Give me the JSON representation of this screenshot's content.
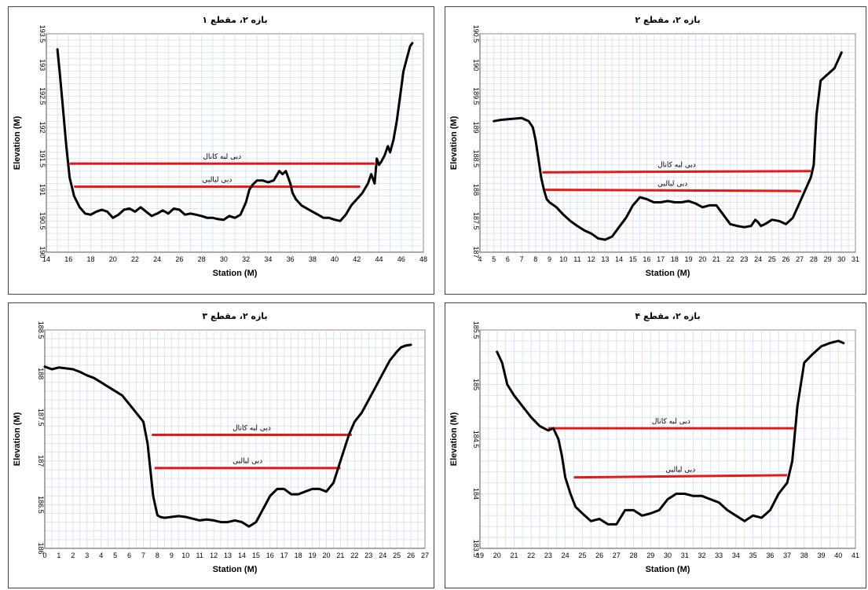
{
  "colors": {
    "profile": "#000000",
    "discharge_lines": "#e11a1a",
    "grid": "#d9e3ef",
    "plot_bg": "#ffffff"
  },
  "chart_data": [
    {
      "type": "line",
      "title": "بازه ۲، مقطع ۱",
      "xlabel": "Station (M)",
      "ylabel": "Elevation (M)",
      "xlim": [
        14,
        48
      ],
      "ylim": [
        190,
        193.5
      ],
      "xticks": [
        14,
        16,
        18,
        20,
        22,
        24,
        26,
        28,
        30,
        32,
        34,
        36,
        38,
        40,
        42,
        44,
        46,
        48
      ],
      "yticks": [
        190,
        190.5,
        191,
        191.5,
        192,
        192.5,
        193,
        193.5
      ],
      "grid": true,
      "series": [
        {
          "x": [
            15.0,
            15.2,
            15.5,
            15.8,
            16.1,
            16.5,
            17.0,
            17.5,
            18.0,
            18.5,
            19.0,
            19.5,
            20.0,
            20.5,
            21.0,
            21.5,
            22.0,
            22.5,
            23.0,
            23.5,
            24.0,
            24.5,
            25.0,
            25.5,
            26.0,
            26.5,
            27.0,
            27.5,
            28.0,
            28.5,
            29.0,
            29.5,
            30.0,
            30.5,
            31.0,
            31.5,
            32.0,
            32.3,
            32.6,
            33.0,
            33.5,
            34.0,
            34.5,
            35.0,
            35.3,
            35.6,
            35.8,
            36.0,
            36.2,
            36.5,
            37.0,
            37.5,
            38.0,
            38.5,
            39.0,
            39.5,
            40.0,
            40.5,
            41.0,
            41.5,
            42.0,
            42.5,
            43.0,
            43.3,
            43.6,
            43.8,
            44.0,
            44.2,
            44.5,
            44.8,
            45.0,
            45.3,
            45.6,
            45.9,
            46.2,
            46.5,
            46.8,
            47.0
          ],
          "y": [
            193.25,
            192.9,
            192.3,
            191.7,
            191.2,
            190.9,
            190.72,
            190.62,
            190.6,
            190.65,
            190.68,
            190.65,
            190.55,
            190.6,
            190.68,
            190.7,
            190.65,
            190.72,
            190.65,
            190.58,
            190.62,
            190.67,
            190.62,
            190.7,
            190.68,
            190.6,
            190.62,
            190.6,
            190.58,
            190.55,
            190.55,
            190.53,
            190.52,
            190.58,
            190.55,
            190.6,
            190.8,
            191.0,
            191.08,
            191.15,
            191.15,
            191.12,
            191.15,
            191.3,
            191.25,
            191.3,
            191.2,
            191.1,
            190.95,
            190.85,
            190.75,
            190.7,
            190.65,
            190.6,
            190.55,
            190.55,
            190.52,
            190.5,
            190.6,
            190.75,
            190.85,
            190.95,
            191.1,
            191.25,
            191.1,
            191.5,
            191.4,
            191.45,
            191.55,
            191.7,
            191.6,
            191.8,
            192.1,
            192.5,
            192.9,
            193.1,
            193.3,
            193.35
          ]
        }
      ],
      "hlines": [
        {
          "label": "دبی لبه کانال",
          "x0": 16.1,
          "x1": 43.6,
          "y0": 191.42,
          "y1": 191.42
        },
        {
          "label": "دبی لبالبی",
          "x0": 16.5,
          "x1": 42.3,
          "y0": 191.05,
          "y1": 191.05
        }
      ]
    },
    {
      "type": "line",
      "title": "بازه ۲، مقطع ۲",
      "xlabel": "Station (M)",
      "ylabel": "Elevation (M)",
      "xlim": [
        4,
        31
      ],
      "ylim": [
        187,
        190.5
      ],
      "xticks": [
        4,
        5,
        6,
        7,
        8,
        9,
        10,
        11,
        12,
        13,
        14,
        15,
        16,
        17,
        18,
        19,
        20,
        21,
        22,
        23,
        24,
        25,
        26,
        27,
        28,
        29,
        30,
        31
      ],
      "yticks": [
        187,
        187.5,
        188,
        188.5,
        189,
        189.5,
        190,
        190.5
      ],
      "grid": true,
      "series": [
        {
          "x": [
            5.0,
            5.5,
            6.0,
            6.5,
            7.0,
            7.5,
            7.8,
            8.0,
            8.2,
            8.4,
            8.6,
            8.8,
            9.0,
            9.5,
            10.0,
            10.5,
            11.0,
            11.5,
            12.0,
            12.5,
            13.0,
            13.5,
            14.0,
            14.5,
            15.0,
            15.5,
            16.0,
            16.5,
            17.0,
            17.5,
            18.0,
            18.5,
            19.0,
            19.5,
            20.0,
            20.5,
            21.0,
            21.5,
            22.0,
            22.5,
            23.0,
            23.5,
            23.8,
            24.0,
            24.2,
            24.5,
            25.0,
            25.5,
            26.0,
            26.5,
            27.0,
            27.3,
            27.6,
            27.8,
            28.0,
            28.2,
            28.5,
            29.0,
            29.5,
            30.0
          ],
          "y": [
            189.1,
            189.12,
            189.13,
            189.14,
            189.15,
            189.1,
            189.0,
            188.8,
            188.5,
            188.2,
            188.0,
            187.85,
            187.8,
            187.72,
            187.6,
            187.5,
            187.42,
            187.35,
            187.3,
            187.22,
            187.2,
            187.25,
            187.4,
            187.55,
            187.75,
            187.88,
            187.85,
            187.8,
            187.8,
            187.82,
            187.8,
            187.8,
            187.82,
            187.78,
            187.72,
            187.75,
            187.75,
            187.6,
            187.45,
            187.42,
            187.4,
            187.42,
            187.52,
            187.48,
            187.42,
            187.45,
            187.52,
            187.5,
            187.45,
            187.55,
            187.8,
            187.95,
            188.1,
            188.2,
            188.4,
            189.2,
            189.75,
            189.85,
            189.95,
            190.2
          ]
        }
      ],
      "hlines": [
        {
          "label": "دبی لبه کانال",
          "x0": 8.5,
          "x1": 27.8,
          "y0": 188.28,
          "y1": 188.3
        },
        {
          "label": "دبی لبالبی",
          "x0": 8.6,
          "x1": 27.1,
          "y0": 188.0,
          "y1": 187.98
        }
      ]
    },
    {
      "type": "line",
      "title": "بازه ۲، مقطع ۳",
      "xlabel": "Station (M)",
      "ylabel": "Elevation (M)",
      "xlim": [
        0,
        27
      ],
      "ylim": [
        186,
        188.5
      ],
      "xticks": [
        0,
        1,
        2,
        3,
        4,
        5,
        6,
        7,
        8,
        9,
        10,
        11,
        12,
        13,
        14,
        15,
        16,
        17,
        18,
        19,
        20,
        21,
        22,
        23,
        24,
        25,
        26,
        27
      ],
      "yticks": [
        186,
        186.5,
        187,
        187.5,
        188,
        188.5
      ],
      "grid": true,
      "series": [
        {
          "x": [
            0.0,
            0.5,
            1.0,
            1.5,
            2.0,
            2.5,
            3.0,
            3.5,
            4.0,
            4.5,
            5.0,
            5.5,
            6.0,
            6.5,
            7.0,
            7.3,
            7.5,
            7.7,
            7.9,
            8.0,
            8.2,
            8.5,
            9.0,
            9.5,
            10.0,
            10.5,
            11.0,
            11.5,
            12.0,
            12.5,
            13.0,
            13.5,
            14.0,
            14.5,
            15.0,
            15.5,
            16.0,
            16.5,
            17.0,
            17.5,
            18.0,
            18.5,
            19.0,
            19.5,
            20.0,
            20.5,
            21.0,
            21.3,
            21.6,
            22.0,
            22.5,
            23.0,
            23.5,
            24.0,
            24.5,
            25.0,
            25.3,
            25.6,
            26.0
          ],
          "y": [
            188.08,
            188.05,
            188.07,
            188.06,
            188.05,
            188.02,
            187.98,
            187.95,
            187.9,
            187.85,
            187.8,
            187.75,
            187.65,
            187.55,
            187.45,
            187.2,
            186.9,
            186.6,
            186.45,
            186.38,
            186.36,
            186.35,
            186.36,
            186.37,
            186.36,
            186.34,
            186.32,
            186.33,
            186.32,
            186.3,
            186.3,
            186.32,
            186.3,
            186.25,
            186.3,
            186.45,
            186.6,
            186.68,
            186.68,
            186.62,
            186.62,
            186.65,
            186.68,
            186.68,
            186.65,
            186.75,
            187.0,
            187.15,
            187.3,
            187.45,
            187.55,
            187.7,
            187.85,
            188.0,
            188.15,
            188.25,
            188.3,
            188.32,
            188.33
          ]
        }
      ],
      "hlines": [
        {
          "label": "دبی لبه کانال",
          "x0": 7.6,
          "x1": 21.8,
          "y0": 187.3,
          "y1": 187.3
        },
        {
          "label": "دبی لبالبی",
          "x0": 7.8,
          "x1": 21.0,
          "y0": 186.92,
          "y1": 186.92
        }
      ]
    },
    {
      "type": "line",
      "title": "بازه ۲، مقطع ۴",
      "xlabel": "Station (M)",
      "ylabel": "Elevation (M)",
      "xlim": [
        19,
        41
      ],
      "ylim": [
        183.5,
        185.5
      ],
      "xticks": [
        19,
        20,
        21,
        22,
        23,
        24,
        25,
        26,
        27,
        28,
        29,
        30,
        31,
        32,
        33,
        34,
        35,
        36,
        37,
        38,
        39,
        40,
        41
      ],
      "yticks": [
        183.5,
        184,
        184.5,
        185,
        185.5
      ],
      "grid": true,
      "series": [
        {
          "x": [
            20.0,
            20.3,
            20.6,
            21.0,
            21.5,
            22.0,
            22.5,
            23.0,
            23.3,
            23.6,
            23.8,
            24.0,
            24.3,
            24.6,
            25.0,
            25.5,
            26.0,
            26.5,
            27.0,
            27.5,
            28.0,
            28.5,
            29.0,
            29.5,
            30.0,
            30.5,
            31.0,
            31.5,
            32.0,
            32.5,
            33.0,
            33.5,
            34.0,
            34.5,
            35.0,
            35.5,
            36.0,
            36.5,
            37.0,
            37.3,
            37.6,
            38.0,
            38.5,
            39.0,
            39.5,
            40.0,
            40.3
          ],
          "y": [
            185.3,
            185.2,
            185.0,
            184.9,
            184.8,
            184.7,
            184.62,
            184.58,
            184.6,
            184.5,
            184.35,
            184.15,
            184.0,
            183.88,
            183.82,
            183.75,
            183.77,
            183.72,
            183.72,
            183.85,
            183.85,
            183.8,
            183.82,
            183.85,
            183.95,
            184.0,
            184.0,
            183.98,
            183.98,
            183.95,
            183.92,
            183.85,
            183.8,
            183.75,
            183.8,
            183.78,
            183.85,
            184.0,
            184.1,
            184.3,
            184.8,
            185.2,
            185.28,
            185.35,
            185.38,
            185.4,
            185.38
          ]
        }
      ],
      "hlines": [
        {
          "label": "دبی لبه کانال",
          "x0": 23.0,
          "x1": 37.4,
          "y0": 184.6,
          "y1": 184.6
        },
        {
          "label": "دبی لبالبی",
          "x0": 24.5,
          "x1": 37.0,
          "y0": 184.15,
          "y1": 184.17
        }
      ]
    }
  ]
}
